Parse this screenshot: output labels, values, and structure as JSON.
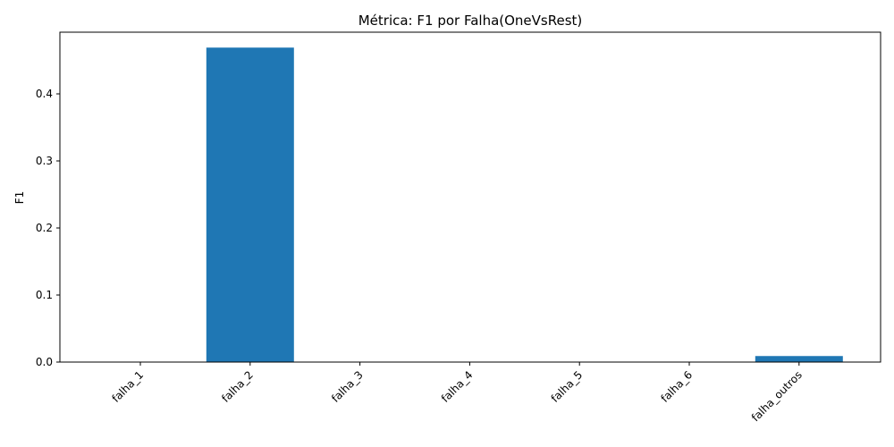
{
  "chart_data": {
    "type": "bar",
    "title": "Métrica: F1 por Falha(OneVsRest)",
    "xlabel": "",
    "ylabel": "F1",
    "categories": [
      "falha_1",
      "falha_2",
      "falha_3",
      "falha_4",
      "falha_5",
      "falha_6",
      "falha_outros"
    ],
    "values": [
      0.0,
      0.469,
      0.0,
      0.0,
      0.0,
      0.0,
      0.009
    ],
    "ylim": [
      0,
      0.492
    ],
    "yticks": [
      0.0,
      0.1,
      0.2,
      0.3,
      0.4
    ],
    "ytick_labels": [
      "0.0",
      "0.1",
      "0.2",
      "0.3",
      "0.4"
    ],
    "bar_color": "#1f77b4",
    "grid": false,
    "legend": false
  }
}
